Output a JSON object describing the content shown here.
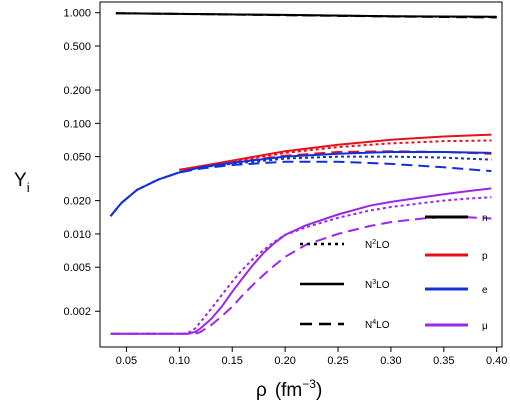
{
  "chart_data": {
    "type": "line",
    "title": "",
    "xlabel": "ρ",
    "xlabel_unit": "(fm",
    "xlabel_exp": "−3",
    "xlabel_close": ")",
    "ylabel": "Y",
    "ylabel_sub": "i",
    "xlim": [
      0.025,
      0.405
    ],
    "ylim": [
      0.00095,
      1.25
    ],
    "yscale": "log",
    "grid": false,
    "legend_position": "bottom-right",
    "xticks": [
      0.05,
      0.1,
      0.15,
      0.2,
      0.25,
      0.3,
      0.35,
      0.4
    ],
    "xtick_labels": [
      "0.05",
      "0.10",
      "0.15",
      "0.20",
      "0.25",
      "0.30",
      "0.35",
      "0.40"
    ],
    "yticks": [
      0.002,
      0.005,
      0.01,
      0.02,
      0.05,
      0.1,
      0.2,
      0.5,
      1.0
    ],
    "ytick_labels": [
      "0.002",
      "0.005",
      "0.010",
      "0.020",
      "0.050",
      "0.100",
      "0.200",
      "0.500",
      "1.000"
    ],
    "species_legend": [
      {
        "label": "n",
        "color": "#000000"
      },
      {
        "label": "p",
        "color": "#e8101a"
      },
      {
        "label": "e",
        "color": "#1030d8"
      },
      {
        "label": "μ",
        "color": "#9a28e6"
      }
    ],
    "order_legend": [
      {
        "label": "N",
        "sup": "2",
        "rest": "LO",
        "dash": "dotted"
      },
      {
        "label": "N",
        "sup": "3",
        "rest": "LO",
        "dash": "solid"
      },
      {
        "label": "N",
        "sup": "4",
        "rest": "LO",
        "dash": "dashed"
      }
    ],
    "series": [
      {
        "species": "n",
        "order": "N3LO",
        "color": "#000000",
        "dash": "solid",
        "x": [
          0.04,
          0.1,
          0.2,
          0.3,
          0.4
        ],
        "y": [
          0.99,
          0.975,
          0.955,
          0.93,
          0.92
        ]
      },
      {
        "species": "n",
        "order": "N2LO",
        "color": "#000000",
        "dash": "dotted",
        "x": [
          0.04,
          0.1,
          0.2,
          0.3,
          0.4
        ],
        "y": [
          0.99,
          0.975,
          0.953,
          0.928,
          0.915
        ]
      },
      {
        "species": "n",
        "order": "N4LO",
        "color": "#000000",
        "dash": "dashed",
        "x": [
          0.04,
          0.1,
          0.2,
          0.3,
          0.4
        ],
        "y": [
          0.99,
          0.975,
          0.95,
          0.925,
          0.905
        ]
      },
      {
        "species": "p",
        "order": "N3LO",
        "color": "#e8101a",
        "dash": "solid",
        "x": [
          0.1,
          0.12,
          0.15,
          0.2,
          0.25,
          0.3,
          0.35,
          0.395
        ],
        "y": [
          0.038,
          0.041,
          0.046,
          0.056,
          0.064,
          0.071,
          0.076,
          0.079
        ]
      },
      {
        "species": "p",
        "order": "N2LO",
        "color": "#e8101a",
        "dash": "dotted",
        "x": [
          0.1,
          0.12,
          0.15,
          0.2,
          0.25,
          0.3,
          0.35,
          0.395
        ],
        "y": [
          0.038,
          0.041,
          0.045,
          0.054,
          0.061,
          0.066,
          0.069,
          0.07
        ]
      },
      {
        "species": "p",
        "order": "N4LO",
        "color": "#e8101a",
        "dash": "dashed",
        "x": [
          0.1,
          0.12,
          0.15,
          0.2,
          0.25,
          0.3,
          0.35,
          0.395
        ],
        "y": [
          0.038,
          0.04,
          0.044,
          0.051,
          0.055,
          0.056,
          0.055,
          0.053
        ]
      },
      {
        "species": "e",
        "order": "N3LO",
        "color": "#1030d8",
        "dash": "solid",
        "x": [
          0.035,
          0.045,
          0.06,
          0.08,
          0.1,
          0.12,
          0.15,
          0.2,
          0.25,
          0.3,
          0.35,
          0.395
        ],
        "y": [
          0.0145,
          0.019,
          0.025,
          0.031,
          0.036,
          0.04,
          0.044,
          0.05,
          0.053,
          0.055,
          0.055,
          0.054
        ]
      },
      {
        "species": "e",
        "order": "N2LO",
        "color": "#1030d8",
        "dash": "dotted",
        "x": [
          0.035,
          0.045,
          0.06,
          0.08,
          0.1,
          0.12,
          0.15,
          0.2,
          0.25,
          0.3,
          0.35,
          0.395
        ],
        "y": [
          0.0145,
          0.019,
          0.025,
          0.031,
          0.036,
          0.04,
          0.043,
          0.048,
          0.05,
          0.05,
          0.049,
          0.047
        ]
      },
      {
        "species": "e",
        "order": "N4LO",
        "color": "#1030d8",
        "dash": "dashed",
        "x": [
          0.035,
          0.045,
          0.06,
          0.08,
          0.1,
          0.12,
          0.15,
          0.2,
          0.25,
          0.3,
          0.35,
          0.395
        ],
        "y": [
          0.0145,
          0.019,
          0.025,
          0.031,
          0.036,
          0.039,
          0.042,
          0.045,
          0.045,
          0.043,
          0.04,
          0.037
        ]
      },
      {
        "species": "μ",
        "order": "N3LO",
        "color": "#9a28e6",
        "dash": "solid",
        "x": [
          0.035,
          0.108,
          0.115,
          0.12,
          0.13,
          0.14,
          0.15,
          0.16,
          0.17,
          0.18,
          0.19,
          0.2,
          0.22,
          0.25,
          0.28,
          0.3,
          0.33,
          0.35,
          0.37,
          0.395
        ],
        "y": [
          0.00125,
          0.00125,
          0.0013,
          0.0014,
          0.0017,
          0.0022,
          0.003,
          0.004,
          0.0053,
          0.0068,
          0.0083,
          0.0098,
          0.012,
          0.015,
          0.018,
          0.0195,
          0.0215,
          0.0228,
          0.0242,
          0.0258
        ]
      },
      {
        "species": "μ",
        "order": "N2LO",
        "color": "#9a28e6",
        "dash": "dotted",
        "x": [
          0.035,
          0.105,
          0.11,
          0.115,
          0.12,
          0.13,
          0.14,
          0.15,
          0.16,
          0.17,
          0.18,
          0.19,
          0.2,
          0.22,
          0.25,
          0.28,
          0.3,
          0.33,
          0.35,
          0.37,
          0.395
        ],
        "y": [
          0.00125,
          0.00125,
          0.0013,
          0.0014,
          0.0016,
          0.0021,
          0.0028,
          0.0037,
          0.0048,
          0.006,
          0.0072,
          0.0085,
          0.0098,
          0.0115,
          0.014,
          0.0163,
          0.0175,
          0.019,
          0.02,
          0.0208,
          0.0215
        ]
      },
      {
        "species": "μ",
        "order": "N4LO",
        "color": "#9a28e6",
        "dash": "dashed",
        "x": [
          0.035,
          0.115,
          0.12,
          0.13,
          0.14,
          0.15,
          0.16,
          0.17,
          0.18,
          0.19,
          0.2,
          0.22,
          0.25,
          0.28,
          0.3,
          0.33,
          0.35,
          0.37,
          0.395
        ],
        "y": [
          0.00125,
          0.00125,
          0.0013,
          0.0015,
          0.0018,
          0.0022,
          0.0028,
          0.0035,
          0.0043,
          0.0052,
          0.0062,
          0.008,
          0.01,
          0.0118,
          0.0128,
          0.0138,
          0.0142,
          0.0142,
          0.0138
        ]
      }
    ]
  }
}
